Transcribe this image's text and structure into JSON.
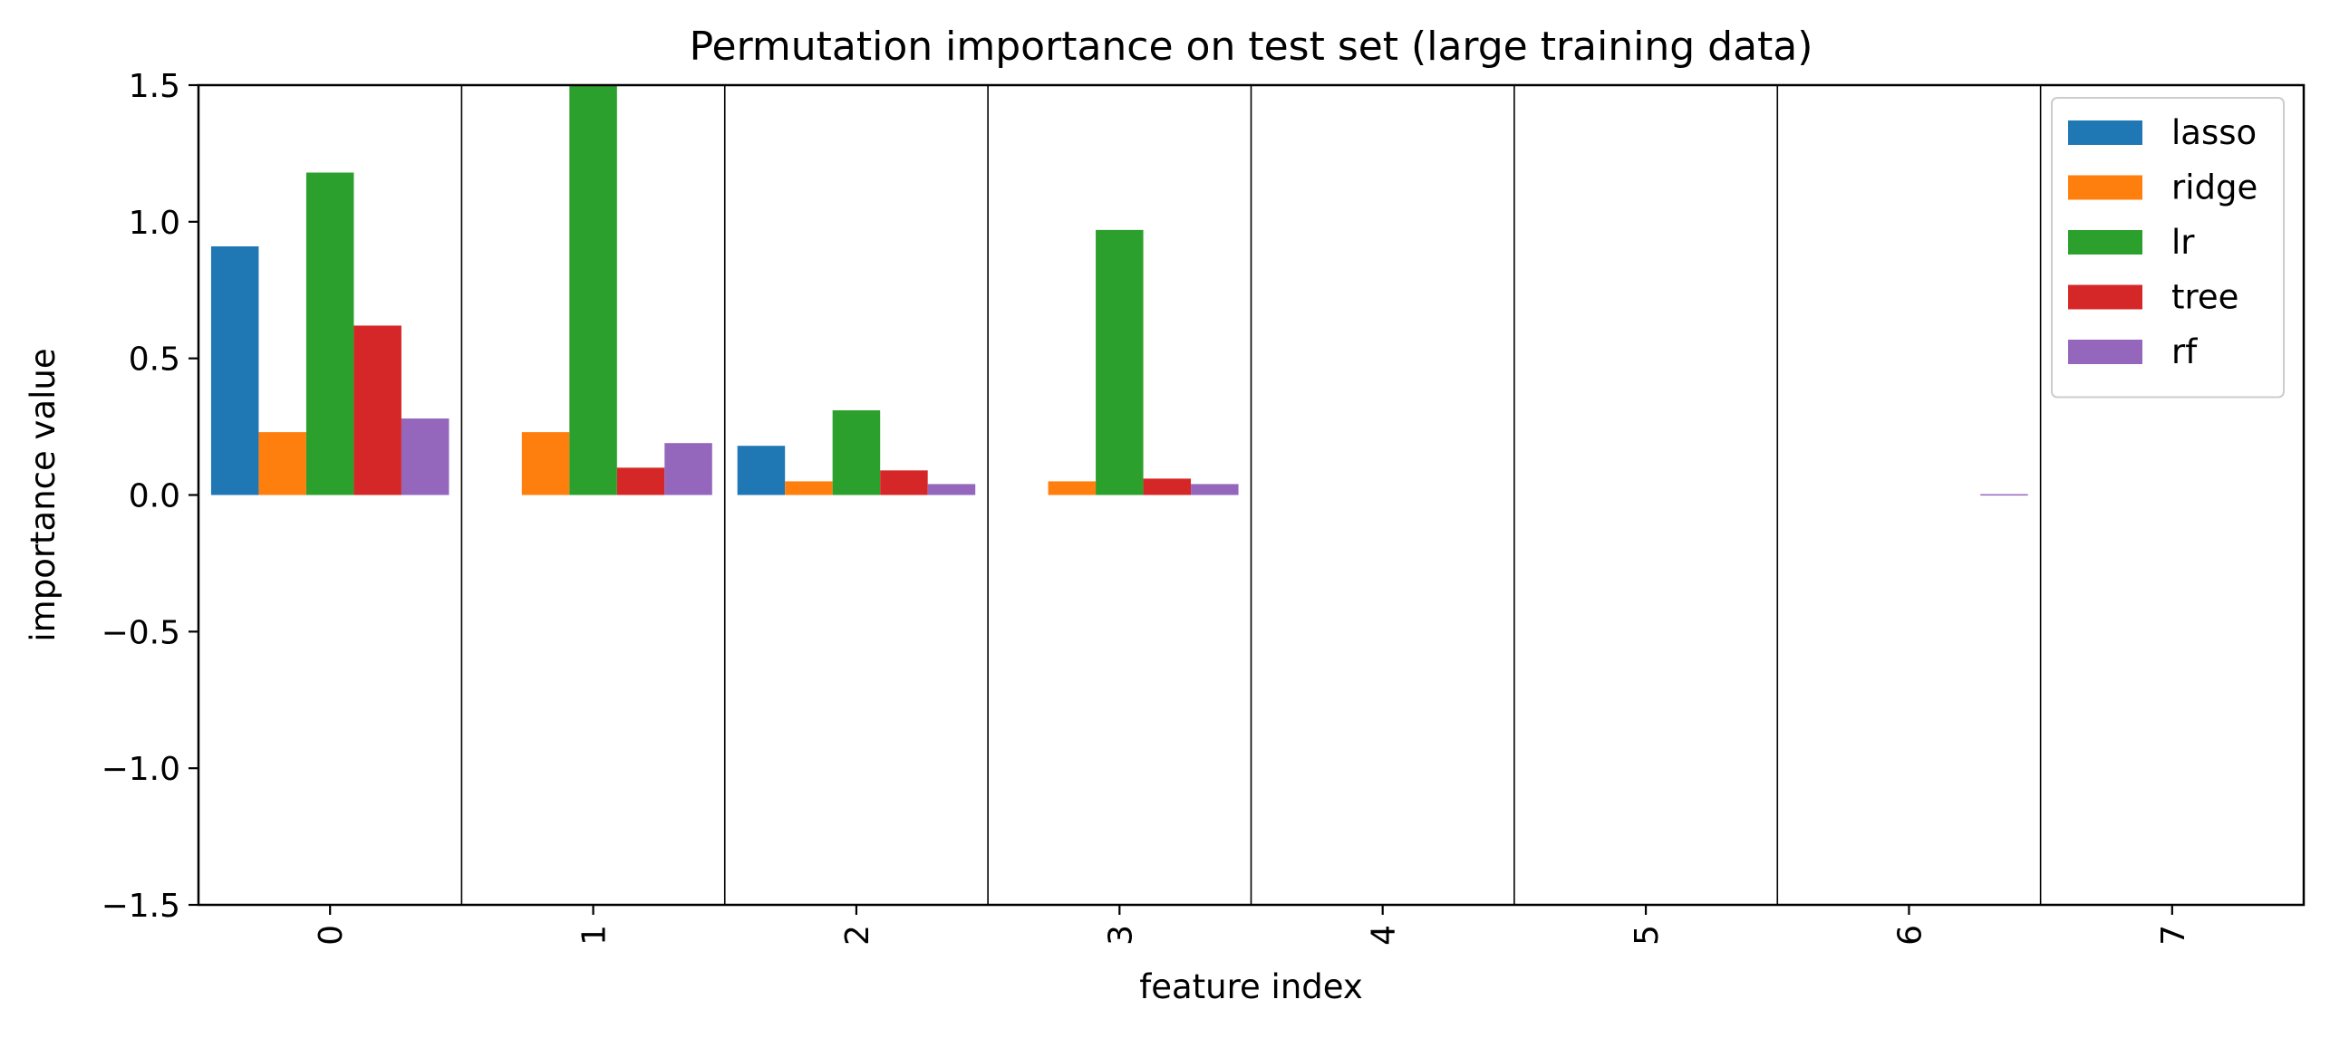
{
  "chart_data": {
    "type": "bar",
    "title": "Permutation importance on test set (large training data)",
    "xlabel": "feature index",
    "ylabel": "importance value",
    "categories": [
      "0",
      "1",
      "2",
      "3",
      "4",
      "5",
      "6",
      "7"
    ],
    "ylim": [
      -1.5,
      1.5
    ],
    "yticks": [
      -1.5,
      -1.0,
      -0.5,
      0.0,
      0.5,
      1.0,
      1.5
    ],
    "ytick_labels": [
      "−1.5",
      "−1.0",
      "−0.5",
      "0.0",
      "0.5",
      "1.0",
      "1.5"
    ],
    "xtick_rotation": "vertical",
    "grid": false,
    "separators": "vertical lines between features",
    "legend_position": "top-right",
    "series": [
      {
        "name": "lasso",
        "color": "#1f77b4",
        "values": [
          0.91,
          0.0,
          0.18,
          0.0,
          0.0,
          0.0,
          0.0,
          0.0
        ]
      },
      {
        "name": "ridge",
        "color": "#ff7f0e",
        "values": [
          0.23,
          0.23,
          0.05,
          0.05,
          0.0,
          0.0,
          0.0,
          0.0
        ]
      },
      {
        "name": "lr",
        "color": "#2ca02c",
        "values": [
          1.18,
          1.5,
          0.31,
          0.97,
          0.0,
          0.0,
          0.0,
          0.0
        ]
      },
      {
        "name": "tree",
        "color": "#d62728",
        "values": [
          0.62,
          0.1,
          0.09,
          0.06,
          0.0,
          0.0,
          0.0,
          0.0
        ]
      },
      {
        "name": "rf",
        "color": "#9467bd",
        "values": [
          0.28,
          0.19,
          0.04,
          0.04,
          0.0,
          0.0,
          0.003,
          0.0
        ]
      }
    ]
  }
}
